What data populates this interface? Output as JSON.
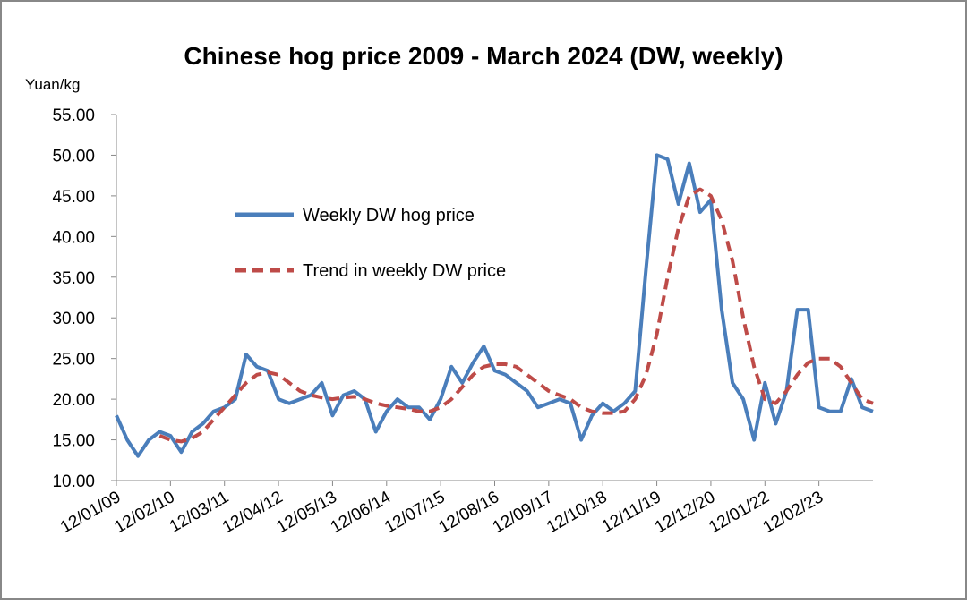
{
  "chart_data": {
    "type": "line",
    "title": "Chinese hog price 2009 - March 2024 (DW, weekly)",
    "y_label": "Yuan/kg",
    "categories": [
      "12/01/09",
      null,
      null,
      null,
      null,
      "12/02/10",
      null,
      null,
      null,
      null,
      "12/03/11",
      null,
      null,
      null,
      null,
      "12/04/12",
      null,
      null,
      null,
      null,
      "12/05/13",
      null,
      null,
      null,
      null,
      "12/06/14",
      null,
      null,
      null,
      null,
      "12/07/15",
      null,
      null,
      null,
      null,
      "12/08/16",
      null,
      null,
      null,
      null,
      "12/09/17",
      null,
      null,
      null,
      null,
      "12/10/18",
      null,
      null,
      null,
      null,
      "12/11/19",
      null,
      null,
      null,
      null,
      "12/12/20",
      null,
      null,
      null,
      null,
      "12/01/22",
      null,
      null,
      null,
      null,
      "12/02/23",
      null,
      null,
      null,
      null,
      null
    ],
    "series": [
      {
        "name": "Weekly DW hog price",
        "color": "#4a7ebb",
        "dashed": false,
        "values": [
          18,
          15,
          13,
          15,
          16,
          15.5,
          13.5,
          16,
          17,
          18.5,
          19,
          20,
          25.5,
          24,
          23.5,
          20,
          19.5,
          20,
          20.5,
          22,
          18,
          20.5,
          21,
          20,
          16,
          18.5,
          20,
          19,
          19,
          17.5,
          20,
          24,
          22,
          24.5,
          26.5,
          23.5,
          23,
          22,
          21,
          19,
          19.5,
          20,
          19.5,
          15,
          18,
          19.5,
          18.5,
          19.5,
          21,
          36,
          50,
          49.5,
          44,
          49,
          43,
          44.5,
          31,
          22,
          20,
          15,
          22,
          17,
          21,
          31,
          31,
          19,
          18.5,
          18.5,
          22.5,
          19,
          18.5
        ]
      },
      {
        "name": "Trend in weekly DW price",
        "color": "#be4b48",
        "dashed": true,
        "values": [
          null,
          null,
          null,
          null,
          15.5,
          15,
          14.8,
          15.2,
          16,
          17.5,
          19,
          20.5,
          22,
          23,
          23.3,
          23,
          22,
          21,
          20.5,
          20.2,
          20,
          20.2,
          20.3,
          20,
          19.5,
          19.2,
          19,
          18.8,
          18.5,
          18.5,
          19,
          20,
          21.5,
          23,
          24,
          24.3,
          24.3,
          24,
          23,
          22,
          21,
          20.5,
          20,
          19,
          18.5,
          18.3,
          18.3,
          18.5,
          20,
          23,
          28,
          35,
          41,
          45,
          45.8,
          45,
          42,
          37,
          30,
          24,
          20,
          19.5,
          21,
          23,
          24.5,
          25,
          25,
          24,
          22,
          20,
          19.5
        ]
      }
    ],
    "ylim": [
      10,
      55
    ],
    "yticks": [
      {
        "value": 10,
        "label": "10.00"
      },
      {
        "value": 15,
        "label": "15.00"
      },
      {
        "value": 20,
        "label": "20.00"
      },
      {
        "value": 25,
        "label": "25.00"
      },
      {
        "value": 30,
        "label": "30.00"
      },
      {
        "value": 35,
        "label": "35.00"
      },
      {
        "value": 40,
        "label": "40.00"
      },
      {
        "value": 45,
        "label": "45.00"
      },
      {
        "value": 50,
        "label": "50.00"
      },
      {
        "value": 55,
        "label": "55.00"
      }
    ],
    "grid": false
  }
}
